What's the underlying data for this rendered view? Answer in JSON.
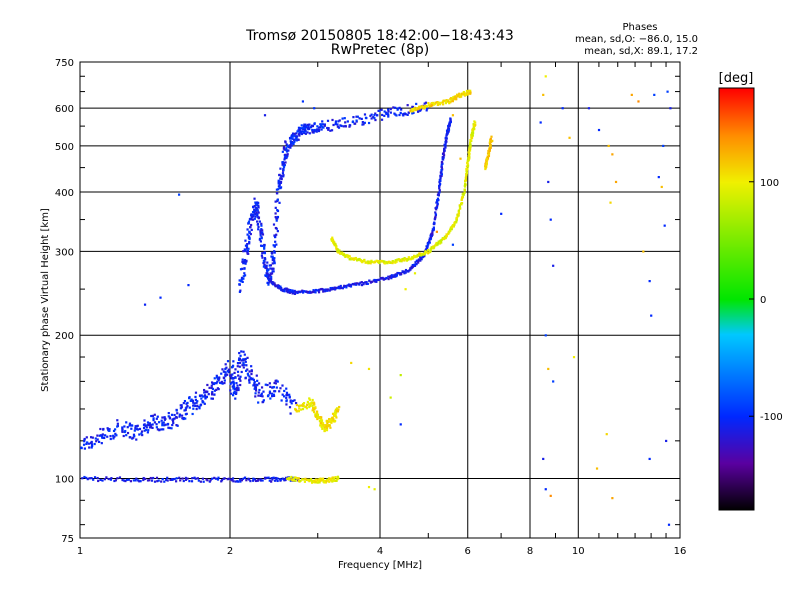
{
  "chart_data": {
    "type": "scatter",
    "title": "Tromsø 20150805 18:42:00−18:43:43",
    "subtitle": "RwPretec (8p)",
    "xlabel": "Frequency [MHz]",
    "ylabel": "Stationary phase Virtual Height [km]",
    "x_scale": "log",
    "y_scale": "log",
    "xlim": [
      1,
      16
    ],
    "ylim": [
      75,
      750
    ],
    "x_ticks": [
      1,
      2,
      4,
      6,
      8,
      10,
      16
    ],
    "y_ticks": [
      75,
      100,
      200,
      300,
      400,
      500,
      600,
      750
    ],
    "grid": true,
    "stats": {
      "heading": "Phases",
      "line1": "mean, sd,O: −86.0, 15.0",
      "line2": "mean, sd,X:  89.1, 17.2"
    },
    "colorbar": {
      "label": "[deg]",
      "min": -180,
      "max": 180,
      "ticks": [
        100,
        0,
        -100
      ]
    },
    "traces": [
      {
        "phase": -105,
        "noise": 0.08,
        "points": [
          [
            1.0,
            118
          ],
          [
            1.1,
            122
          ],
          [
            1.2,
            128
          ],
          [
            1.3,
            125
          ],
          [
            1.4,
            132
          ],
          [
            1.5,
            130
          ],
          [
            1.6,
            138
          ],
          [
            1.7,
            145
          ],
          [
            1.8,
            150
          ],
          [
            1.9,
            160
          ],
          [
            2.0,
            170
          ],
          [
            2.05,
            150
          ],
          [
            2.1,
            180
          ],
          [
            2.2,
            165
          ],
          [
            2.3,
            150
          ],
          [
            2.5,
            155
          ],
          [
            2.7,
            140
          ]
        ]
      },
      {
        "phase": -110,
        "noise": 0.02,
        "points": [
          [
            1.0,
            100
          ],
          [
            1.3,
            99.5
          ],
          [
            1.6,
            99.5
          ],
          [
            2.0,
            99.5
          ],
          [
            2.4,
            99.5
          ],
          [
            2.75,
            100
          ]
        ]
      },
      {
        "phase": 100,
        "noise": 0.02,
        "points": [
          [
            2.6,
            100
          ],
          [
            2.9,
            99
          ],
          [
            3.1,
            99
          ],
          [
            3.3,
            100
          ]
        ]
      },
      {
        "phase": -105,
        "noise": 0.05,
        "points": [
          [
            2.1,
            250
          ],
          [
            2.15,
            300
          ],
          [
            2.2,
            340
          ],
          [
            2.25,
            380
          ],
          [
            2.3,
            330
          ],
          [
            2.35,
            280
          ],
          [
            2.4,
            260
          ],
          [
            2.45,
            300
          ],
          [
            2.5,
            400
          ],
          [
            2.55,
            450
          ],
          [
            2.6,
            500
          ],
          [
            2.7,
            520
          ],
          [
            2.8,
            540
          ],
          [
            2.9,
            545
          ],
          [
            3.1,
            550
          ],
          [
            3.5,
            560
          ],
          [
            4.0,
            580
          ],
          [
            4.5,
            595
          ],
          [
            5.0,
            605
          ]
        ]
      },
      {
        "phase": -110,
        "noise": 0.015,
        "points": [
          [
            2.4,
            260
          ],
          [
            2.55,
            250
          ],
          [
            2.7,
            246
          ],
          [
            3.0,
            248
          ],
          [
            3.3,
            252
          ],
          [
            3.7,
            257
          ],
          [
            4.2,
            265
          ],
          [
            4.6,
            275
          ],
          [
            4.9,
            295
          ],
          [
            5.1,
            330
          ],
          [
            5.25,
            400
          ],
          [
            5.35,
            470
          ],
          [
            5.45,
            530
          ],
          [
            5.55,
            570
          ]
        ]
      },
      {
        "phase": 95,
        "noise": 0.015,
        "points": [
          [
            3.2,
            320
          ],
          [
            3.3,
            300
          ],
          [
            3.5,
            290
          ],
          [
            3.8,
            285
          ],
          [
            4.2,
            285
          ],
          [
            4.6,
            290
          ],
          [
            5.0,
            300
          ],
          [
            5.4,
            320
          ],
          [
            5.7,
            350
          ],
          [
            5.9,
            400
          ],
          [
            6.0,
            460
          ],
          [
            6.1,
            520
          ],
          [
            6.2,
            560
          ]
        ]
      },
      {
        "phase": 105,
        "noise": 0.04,
        "points": [
          [
            2.7,
            140
          ],
          [
            2.9,
            145
          ],
          [
            3.0,
            135
          ],
          [
            3.1,
            128
          ],
          [
            3.2,
            132
          ],
          [
            3.3,
            140
          ]
        ]
      },
      {
        "phase": 110,
        "noise": 0.02,
        "points": [
          [
            4.6,
            595
          ],
          [
            5.0,
            610
          ],
          [
            5.5,
            620
          ],
          [
            5.8,
            640
          ],
          [
            6.1,
            650
          ]
        ]
      },
      {
        "phase": 115,
        "noise": 0.02,
        "points": [
          [
            6.5,
            450
          ],
          [
            6.6,
            480
          ],
          [
            6.7,
            520
          ]
        ]
      }
    ],
    "scatter": [
      [
        1.35,
        232,
        -105
      ],
      [
        1.45,
        240,
        -100
      ],
      [
        1.65,
        255,
        -100
      ],
      [
        1.58,
        395,
        -90
      ],
      [
        2.8,
        620,
        -95
      ],
      [
        2.95,
        600,
        -95
      ],
      [
        2.35,
        580,
        -110
      ],
      [
        3.5,
        175,
        110
      ],
      [
        3.8,
        170,
        105
      ],
      [
        3.8,
        96,
        100
      ],
      [
        3.9,
        95,
        95
      ],
      [
        4.4,
        165,
        80
      ],
      [
        4.2,
        148,
        85
      ],
      [
        4.5,
        250,
        100
      ],
      [
        4.7,
        270,
        95
      ],
      [
        5.2,
        330,
        140
      ],
      [
        5.6,
        310,
        -90
      ],
      [
        5.6,
        580,
        120
      ],
      [
        5.8,
        470,
        120
      ],
      [
        4.4,
        130,
        -100
      ],
      [
        7.0,
        360,
        -100
      ],
      [
        8.5,
        640,
        120
      ],
      [
        8.6,
        700,
        100
      ],
      [
        8.4,
        560,
        -100
      ],
      [
        8.7,
        420,
        -110
      ],
      [
        8.8,
        350,
        -100
      ],
      [
        8.9,
        280,
        -110
      ],
      [
        8.6,
        200,
        -90
      ],
      [
        8.7,
        170,
        120
      ],
      [
        8.9,
        160,
        -90
      ],
      [
        8.5,
        110,
        -110
      ],
      [
        8.8,
        92,
        140
      ],
      [
        8.6,
        95,
        -100
      ],
      [
        9.3,
        600,
        -100
      ],
      [
        9.6,
        520,
        120
      ],
      [
        9.8,
        180,
        100
      ],
      [
        10.5,
        600,
        -110
      ],
      [
        11.0,
        540,
        -100
      ],
      [
        11.5,
        500,
        120
      ],
      [
        11.7,
        480,
        130
      ],
      [
        11.9,
        420,
        130
      ],
      [
        11.6,
        380,
        110
      ],
      [
        10.9,
        105,
        120
      ],
      [
        11.4,
        124,
        110
      ],
      [
        11.7,
        91,
        130
      ],
      [
        12.8,
        640,
        130
      ],
      [
        13.2,
        620,
        140
      ],
      [
        13.5,
        300,
        120
      ],
      [
        13.9,
        260,
        -100
      ],
      [
        14.0,
        220,
        -100
      ],
      [
        14.5,
        430,
        -100
      ],
      [
        14.8,
        500,
        -90
      ],
      [
        14.9,
        340,
        -100
      ],
      [
        15.1,
        650,
        -90
      ],
      [
        15.3,
        600,
        -110
      ],
      [
        15.0,
        120,
        -110
      ],
      [
        15.2,
        80,
        -100
      ],
      [
        14.7,
        410,
        120
      ],
      [
        13.9,
        110,
        -100
      ],
      [
        14.2,
        640,
        -90
      ]
    ]
  }
}
